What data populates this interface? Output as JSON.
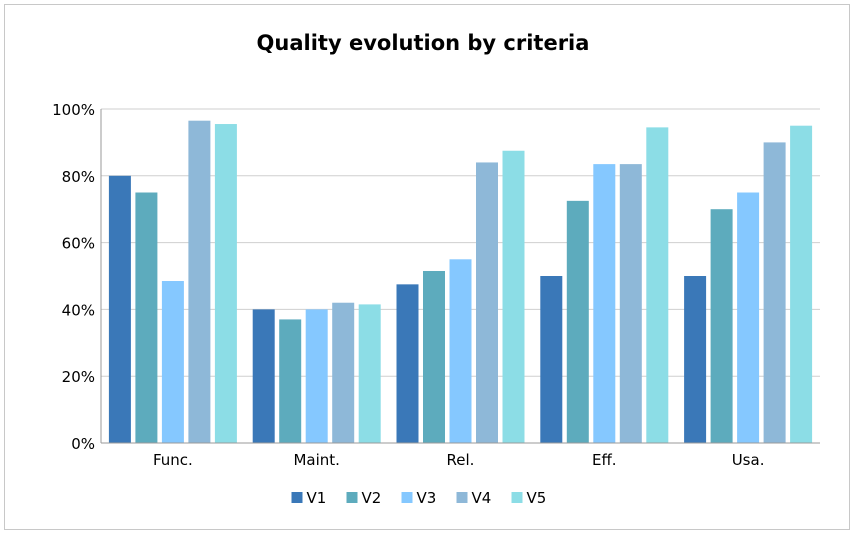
{
  "chart_data": {
    "type": "bar",
    "title": "Quality evolution by criteria",
    "xlabel": "",
    "ylabel": "",
    "categories": [
      "Func.",
      "Maint.",
      "Rel.",
      "Eff.",
      "Usa."
    ],
    "ylim": [
      0,
      100
    ],
    "y_ticks": [
      0,
      20,
      40,
      60,
      80,
      100
    ],
    "y_tick_labels": [
      "0%",
      "20%",
      "40%",
      "60%",
      "80%",
      "100%"
    ],
    "grid": true,
    "legend_position": "bottom",
    "series": [
      {
        "name": "V1",
        "color": "#3a78b8",
        "values": [
          80,
          40,
          47.5,
          50,
          50
        ]
      },
      {
        "name": "V2",
        "color": "#5dabbd",
        "values": [
          75,
          37,
          51.5,
          72.5,
          70
        ]
      },
      {
        "name": "V3",
        "color": "#85c8ff",
        "values": [
          48.5,
          40,
          55,
          83.5,
          75
        ]
      },
      {
        "name": "V4",
        "color": "#8eb8d8",
        "values": [
          96.5,
          42,
          84,
          83.5,
          90
        ]
      },
      {
        "name": "V5",
        "color": "#8cdde6",
        "values": [
          95.5,
          41.5,
          87.5,
          94.5,
          95
        ]
      }
    ]
  }
}
